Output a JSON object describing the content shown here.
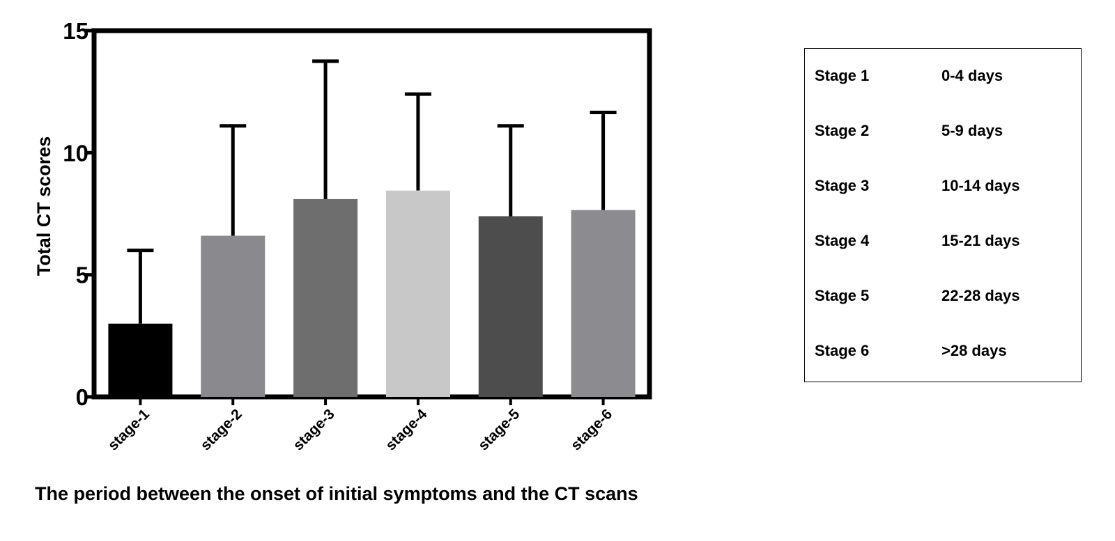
{
  "chart_data": {
    "type": "bar",
    "categories": [
      "stage-1",
      "stage-2",
      "stage-3",
      "stage-4",
      "stage-5",
      "stage-6"
    ],
    "values": [
      3.0,
      6.6,
      8.1,
      8.45,
      7.4,
      7.65
    ],
    "error_upper": [
      6.0,
      11.1,
      13.75,
      12.4,
      11.1,
      11.65
    ],
    "bar_colors": [
      "#000000",
      "#8a8a8e",
      "#6e6e6e",
      "#c8c8c8",
      "#4d4d4d",
      "#8c8b90"
    ],
    "xlabel": "The period between the onset of initial symptoms and the CT scans",
    "ylabel": "Total CT scores",
    "ylim": [
      0,
      15
    ],
    "yticks": [
      0,
      5,
      10,
      15
    ],
    "grid": false
  },
  "legend": {
    "rows": [
      {
        "stage": "Stage 1",
        "range": "0-4 days"
      },
      {
        "stage": "Stage 2",
        "range": "5-9 days"
      },
      {
        "stage": "Stage 3",
        "range": "10-14 days"
      },
      {
        "stage": "Stage 4",
        "range": "15-21 days"
      },
      {
        "stage": "Stage 5",
        "range": "22-28 days"
      },
      {
        "stage": "Stage 6",
        "range": ">28 days"
      }
    ]
  }
}
